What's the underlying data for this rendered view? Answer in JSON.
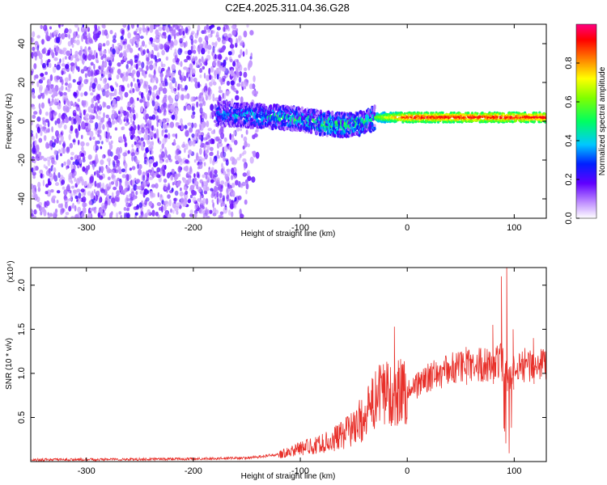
{
  "title": "C2E4.2025.311.04.36.G28",
  "chart_data": [
    {
      "type": "heatmap",
      "xlabel": "Height of straight line (km)",
      "ylabel": "Frequency (Hz)",
      "xlim": [
        -352,
        130
      ],
      "ylim": [
        -50,
        50
      ],
      "x_ticks": [
        "-300",
        "-200",
        "-100",
        "0",
        "100"
      ],
      "x_tick_values": [
        -300,
        -200,
        -100,
        0,
        100
      ],
      "y_ticks": [
        "-40",
        "-20",
        "0",
        "20",
        "40"
      ],
      "y_tick_values": [
        -40,
        -20,
        0,
        20,
        40
      ],
      "colorbar": {
        "label": "Normalized spectral amplitude",
        "range": [
          0,
          1
        ],
        "ticks": [
          "0.0",
          "0.2",
          "0.4",
          "0.6",
          "0.8"
        ],
        "tick_values": [
          0.0,
          0.2,
          0.4,
          0.6,
          0.8
        ]
      },
      "signal_line": {
        "description_points_x": [
          -175,
          -150,
          -120,
          -100,
          -80,
          -60,
          -40,
          -30,
          0,
          50,
          100,
          130
        ],
        "freq_hz": [
          4,
          3,
          2,
          1,
          -1,
          -2,
          -1,
          2,
          2,
          2,
          2,
          2
        ],
        "peak_amplitude": [
          0.35,
          0.4,
          0.45,
          0.45,
          0.55,
          0.55,
          0.5,
          0.6,
          0.95,
          0.95,
          0.95,
          0.95
        ]
      },
      "noise_region_x": [
        -352,
        -140
      ]
    },
    {
      "type": "line",
      "xlabel": "Height of straight line (km)",
      "ylabel": "SNR (10 * v/v)",
      "y_multiplier": "(x10⁴)",
      "xlim": [
        -352,
        130
      ],
      "ylim": [
        0,
        2.2
      ],
      "x_ticks": [
        "-300",
        "-200",
        "-100",
        "0",
        "100"
      ],
      "x_tick_values": [
        -300,
        -200,
        -100,
        0,
        100
      ],
      "y_ticks": [
        "0.5",
        "1.0",
        "1.5",
        "2.0"
      ],
      "y_tick_values": [
        0.5,
        1.0,
        1.5,
        2.0
      ],
      "color": "#e8302a",
      "series_envelope": {
        "x": [
          -352,
          -200,
          -150,
          -120,
          -100,
          -80,
          -60,
          -40,
          -30,
          -20,
          0,
          20,
          40,
          60,
          80,
          90,
          95,
          100,
          110,
          120,
          130
        ],
        "y": [
          0.02,
          0.03,
          0.04,
          0.08,
          0.15,
          0.2,
          0.3,
          0.5,
          0.7,
          0.8,
          0.8,
          0.95,
          1.05,
          1.1,
          1.1,
          1.15,
          0.9,
          1.05,
          1.1,
          1.1,
          1.08
        ]
      },
      "spikes": [
        {
          "x": -12,
          "y": 1.53
        },
        {
          "x": -22,
          "y": 0.95
        },
        {
          "x": 55,
          "y": 1.3
        },
        {
          "x": 80,
          "y": 1.55
        },
        {
          "x": 88,
          "y": 2.1
        },
        {
          "x": 93,
          "y": 2.2
        },
        {
          "x": 99,
          "y": 1.5
        },
        {
          "x": 118,
          "y": 1.4
        }
      ]
    }
  ]
}
